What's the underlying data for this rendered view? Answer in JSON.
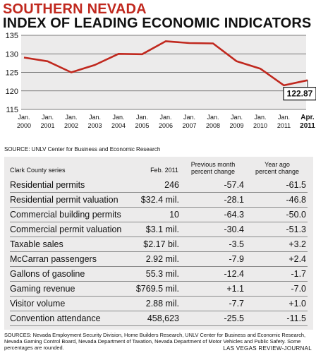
{
  "header": {
    "title_line1": "SOUTHERN NEVADA",
    "title_line2": "INDEX OF LEADING ECONOMIC INDICATORS"
  },
  "chart_data": {
    "type": "line",
    "x_labels": [
      [
        "Jan.",
        "2000"
      ],
      [
        "Jan.",
        "2001"
      ],
      [
        "Jan.",
        "2002"
      ],
      [
        "Jan.",
        "2003"
      ],
      [
        "Jan.",
        "2004"
      ],
      [
        "Jan.",
        "2005"
      ],
      [
        "Jan.",
        "2006"
      ],
      [
        "Jan.",
        "2007"
      ],
      [
        "Jan.",
        "2008"
      ],
      [
        "Jan.",
        "2009"
      ],
      [
        "Jan.",
        "2010"
      ],
      [
        "Jan.",
        "2011"
      ],
      [
        "Apr.",
        "2011"
      ]
    ],
    "values": [
      129.0,
      128.0,
      125.0,
      127.0,
      130.0,
      129.9,
      133.4,
      132.9,
      132.8,
      128.0,
      126.0,
      121.5,
      122.87
    ],
    "ylim": [
      115,
      135
    ],
    "yticks": [
      115,
      120,
      125,
      130,
      135
    ],
    "grid": true,
    "callout": "122.87",
    "colors": {
      "line": "#c0281e",
      "grid": "#555555",
      "plot_bg": "#ecebeb"
    }
  },
  "sources": {
    "top": "SOURCE: UNLV Center for Business and Economic Research",
    "bottom": "SOURCES: Nevada Employment Security Division, Home Builders Research, UNLV Center for Business and Economic Research, Nevada Gaming Control Board, Nevada Department of Taxation, Nevada Department of Motor Vehicles and Public Safety. Some percentages are rounded.",
    "credit": "LAS VEGAS REVIEW-JOURNAL"
  },
  "table": {
    "headers": {
      "series": "Clark County series",
      "value": "Feb. 2011",
      "prev_line1": "Previous month",
      "prev_line2": "percent change",
      "year_line1": "Year ago",
      "year_line2": "percent change"
    },
    "rows": [
      [
        "Residential permits",
        "246",
        "-57.4",
        "-61.5"
      ],
      [
        "Residential permit valuation",
        "$32.4 mil.",
        "-28.1",
        "-46.8"
      ],
      [
        "Commercial building permits",
        "10",
        "-64.3",
        "-50.0"
      ],
      [
        "Commercial permit valuation",
        "$3.1 mil.",
        "-30.4",
        "-51.3"
      ],
      [
        "Taxable sales",
        "$2.17 bil.",
        "-3.5",
        "+3.2"
      ],
      [
        "McCarran passengers",
        "2.92 mil.",
        "-7.9",
        "+2.4"
      ],
      [
        "Gallons of gasoline",
        "55.3 mil.",
        "-12.4",
        "-1.7"
      ],
      [
        "Gaming revenue",
        "$769.5 mil.",
        "+1.1",
        "-7.0"
      ],
      [
        "Visitor volume",
        "2.88 mil.",
        "-7.7",
        "+1.0"
      ],
      [
        "Convention attendance",
        "458,623",
        "-25.5",
        "-11.5"
      ]
    ]
  }
}
